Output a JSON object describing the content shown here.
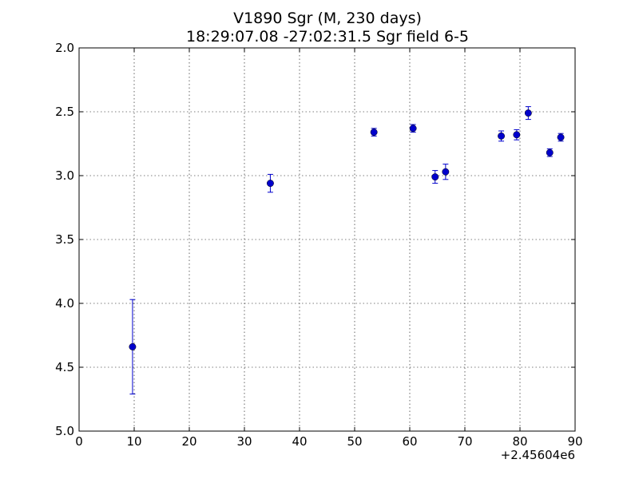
{
  "chart_data": {
    "type": "scatter",
    "title": "V1890 Sgr  (M, 230 days)",
    "subtitle": "18:29:07.08 -27:02:31.5 Sgr field 6-5",
    "xlabel": "",
    "ylabel": "",
    "x_offset_label": "+2.45604e6",
    "xlim": [
      0,
      90
    ],
    "ylim": [
      5.0,
      2.0
    ],
    "y_inverted": true,
    "grid": true,
    "x_ticks": [
      0,
      10,
      20,
      30,
      40,
      50,
      60,
      70,
      80,
      90
    ],
    "x_tick_labels": [
      "0",
      "10",
      "20",
      "30",
      "40",
      "50",
      "60",
      "70",
      "80",
      "90"
    ],
    "y_ticks": [
      2.0,
      2.5,
      3.0,
      3.5,
      4.0,
      4.5,
      5.0
    ],
    "y_tick_labels": [
      "2.0",
      "2.5",
      "3.0",
      "3.5",
      "4.0",
      "4.5",
      "5.0"
    ],
    "series": [
      {
        "color": "#0000cc",
        "marker": "circle",
        "points": [
          {
            "x": 9.7,
            "y": 4.34,
            "err": 0.37
          },
          {
            "x": 34.7,
            "y": 3.06,
            "err": 0.07
          },
          {
            "x": 53.5,
            "y": 2.66,
            "err": 0.03
          },
          {
            "x": 60.6,
            "y": 2.63,
            "err": 0.03
          },
          {
            "x": 64.6,
            "y": 3.01,
            "err": 0.05
          },
          {
            "x": 66.5,
            "y": 2.97,
            "err": 0.06
          },
          {
            "x": 76.6,
            "y": 2.69,
            "err": 0.04
          },
          {
            "x": 79.4,
            "y": 2.68,
            "err": 0.04
          },
          {
            "x": 81.5,
            "y": 2.51,
            "err": 0.05
          },
          {
            "x": 85.4,
            "y": 2.82,
            "err": 0.03
          },
          {
            "x": 87.4,
            "y": 2.7,
            "err": 0.03
          }
        ]
      }
    ]
  }
}
